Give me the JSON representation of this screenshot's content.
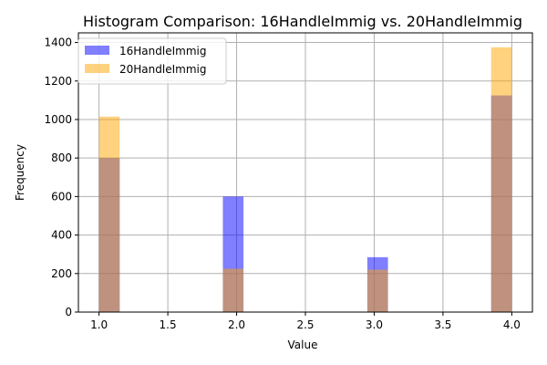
{
  "chart_data": {
    "type": "bar",
    "title": "Histogram Comparison: 16HandleImmig vs. 20HandleImmig",
    "xlabel": "Value",
    "ylabel": "Frequency",
    "xlim": [
      0.85,
      4.15
    ],
    "ylim": [
      0,
      1450
    ],
    "xticks": [
      "1.0",
      "1.5",
      "2.0",
      "2.5",
      "3.0",
      "3.5",
      "4.0"
    ],
    "xtick_values": [
      1.0,
      1.5,
      2.0,
      2.5,
      3.0,
      3.5,
      4.0
    ],
    "yticks": [
      "0",
      "200",
      "400",
      "600",
      "800",
      "1000",
      "1200",
      "1400"
    ],
    "ytick_values": [
      0,
      200,
      400,
      600,
      800,
      1000,
      1200,
      1400
    ],
    "grid": true,
    "legend_position": "top-left",
    "bin_width": 0.15,
    "series": [
      {
        "name": "16HandleImmig",
        "color": "#0000ff",
        "opacity": 0.5,
        "bins": [
          {
            "x0": 1.0,
            "x1": 1.15,
            "value": 800
          },
          {
            "x0": 1.9,
            "x1": 2.05,
            "value": 600
          },
          {
            "x0": 2.95,
            "x1": 3.1,
            "value": 285
          },
          {
            "x0": 3.85,
            "x1": 4.0,
            "value": 1125
          }
        ]
      },
      {
        "name": "20HandleImmig",
        "color": "#ffa500",
        "opacity": 0.5,
        "bins": [
          {
            "x0": 1.0,
            "x1": 1.15,
            "value": 1015
          },
          {
            "x0": 1.9,
            "x1": 2.05,
            "value": 225
          },
          {
            "x0": 2.95,
            "x1": 3.1,
            "value": 220
          },
          {
            "x0": 3.85,
            "x1": 4.0,
            "value": 1375
          }
        ]
      }
    ]
  }
}
